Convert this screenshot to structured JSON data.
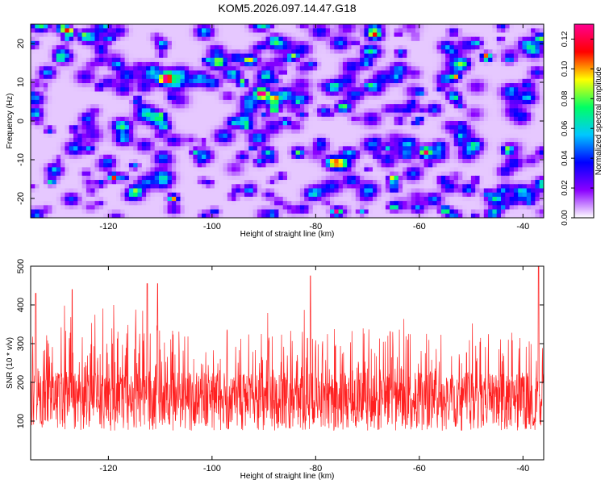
{
  "figure_title": "KOM5.2026.097.14.47.G18",
  "chart_data": [
    {
      "type": "heatmap",
      "title": "",
      "xlabel": "Height of straight line (km)",
      "ylabel": "Frequency (Hz)",
      "xlim": [
        -135,
        -36
      ],
      "ylim": [
        -25,
        25
      ],
      "xticks": [
        -120,
        -100,
        -80,
        -60,
        -40
      ],
      "yticks": [
        -20,
        -10,
        0,
        10,
        20
      ],
      "colorbar": {
        "label": "Normalized spectral amplitude",
        "range": [
          0,
          0.13
        ],
        "ticks": [
          0.0,
          0.02,
          0.04,
          0.06,
          0.08,
          0.1,
          0.12
        ],
        "colors": [
          "#ffffff",
          "#8a00ff",
          "#0000ff",
          "#00c8ff",
          "#00ff64",
          "#ffff00",
          "#ff0000",
          "#ff0090"
        ]
      },
      "peaks": [
        {
          "x": -127.5,
          "y": 23,
          "value": 0.11
        },
        {
          "x": -47,
          "y": 16.5,
          "value": 0.12
        },
        {
          "x": -119,
          "y": -14.5,
          "value": 0.11
        },
        {
          "x": -88,
          "y": 3,
          "value": 0.09
        },
        {
          "x": -76,
          "y": -23.5,
          "value": 0.12
        },
        {
          "x": -65,
          "y": -15,
          "value": 0.11
        },
        {
          "x": -107.5,
          "y": -20,
          "value": 0.1
        },
        {
          "x": -55,
          "y": -23,
          "value": 0.09
        },
        {
          "x": -53,
          "y": 11.5,
          "value": 0.09
        },
        {
          "x": -43,
          "y": -7.5,
          "value": 0.08
        }
      ]
    },
    {
      "type": "line",
      "title": "",
      "xlabel": "Height of straight line (km)",
      "ylabel": "SNR (10 * v/v)",
      "xlim": [
        -135,
        -36
      ],
      "ylim": [
        0,
        500
      ],
      "xticks": [
        -120,
        -100,
        -80,
        -60,
        -40
      ],
      "yticks": [
        100,
        200,
        300,
        400,
        500
      ],
      "color": "#ff2020",
      "peaks": [
        {
          "x": -37,
          "y": 500
        },
        {
          "x": -81,
          "y": 475
        },
        {
          "x": -112.5,
          "y": 455
        },
        {
          "x": -110.5,
          "y": 455
        },
        {
          "x": -134,
          "y": 430
        },
        {
          "x": -127,
          "y": 440
        }
      ]
    }
  ]
}
